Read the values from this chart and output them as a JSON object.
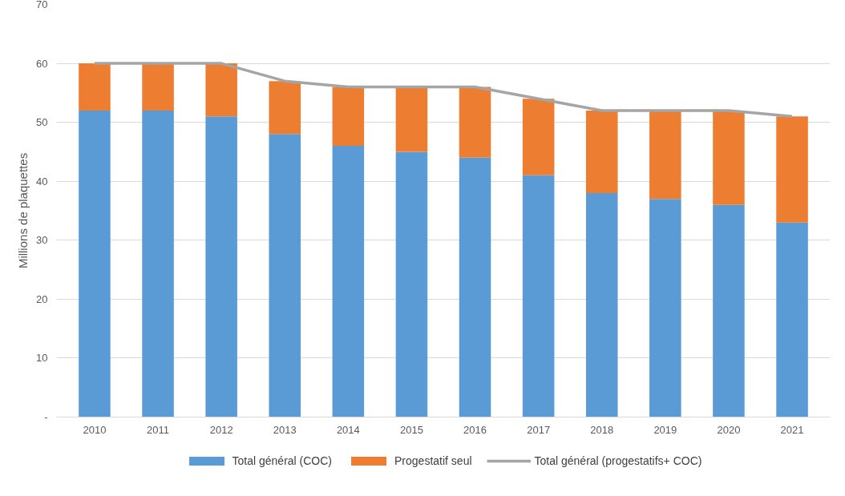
{
  "chart_data": {
    "type": "bar",
    "stacked": true,
    "ylabel": "Millions de plaquettes",
    "categories": [
      "2010",
      "2011",
      "2012",
      "2013",
      "2014",
      "2015",
      "2016",
      "2017",
      "2018",
      "2019",
      "2020",
      "2021"
    ],
    "series": [
      {
        "name": "Total général (COC)",
        "color": "#5b9bd5",
        "values": [
          52,
          52,
          51,
          48,
          46,
          45,
          44,
          41,
          38,
          37,
          36,
          33
        ]
      },
      {
        "name": "Progestatif seul",
        "color": "#ed7d31",
        "values": [
          8,
          8,
          9,
          9,
          10,
          11,
          12,
          13,
          14,
          15,
          16,
          18
        ]
      },
      {
        "name": "Total général (progestatifs+ COC)",
        "color": "#a5a5a5",
        "type": "line",
        "values": [
          60,
          60,
          60,
          57,
          56,
          56,
          56,
          54,
          52,
          52,
          52,
          51
        ]
      }
    ],
    "ylim": [
      0,
      70
    ],
    "yticks": [
      {
        "value": 0,
        "label": "-"
      },
      10,
      20,
      30,
      40,
      50,
      60,
      70
    ],
    "grid": "y",
    "legend": "bottom",
    "marker": "none",
    "line_style": "solid"
  }
}
